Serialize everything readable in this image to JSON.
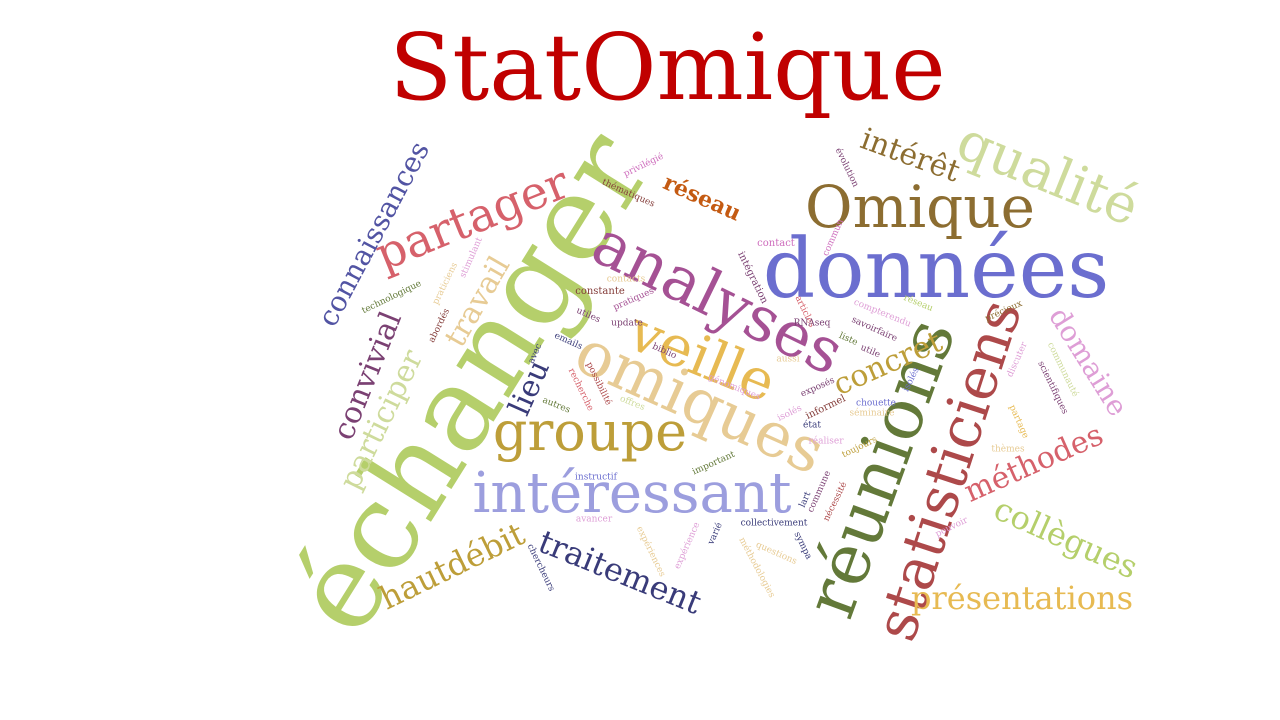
{
  "title": {
    "text": "StatOmique",
    "color": "#c00000"
  },
  "words": [
    {
      "text": "échanger",
      "color": "#b5cf6b"
    },
    {
      "text": "données",
      "color": "#6b6ecf"
    },
    {
      "text": "analyses",
      "color": "#a55194"
    },
    {
      "text": "omiques",
      "color": "#e7cb94"
    },
    {
      "text": "intéressant",
      "color": "#9c9ede"
    },
    {
      "text": "veille",
      "color": "#e7ba52"
    },
    {
      "text": "groupe",
      "color": "#bd9e39"
    },
    {
      "text": "réunions",
      "color": "#637939"
    },
    {
      "text": "statisticiens",
      "color": "#ad494a"
    },
    {
      "text": "Omique",
      "color": "#8c6d31"
    },
    {
      "text": "qualité",
      "color": "#cedb9c"
    },
    {
      "text": "partager",
      "color": "#d6616b"
    },
    {
      "text": "connaissances",
      "color": "#5254a3"
    },
    {
      "text": "traitement",
      "color": "#393b79"
    },
    {
      "text": "hautdébit",
      "color": "#bd9e39"
    },
    {
      "text": "présentations",
      "color": "#e7ba52"
    },
    {
      "text": "collègues",
      "color": "#b5cf6b"
    },
    {
      "text": "méthodes",
      "color": "#d6616b"
    },
    {
      "text": "domaine",
      "color": "#de9ed6"
    },
    {
      "text": "concret",
      "color": "#bd9e39"
    },
    {
      "text": "intérêt",
      "color": "#8c6d31"
    },
    {
      "text": "participer",
      "color": "#cedb9c"
    },
    {
      "text": "convivial",
      "color": "#7b4173"
    },
    {
      "text": "travail",
      "color": "#e7cb94"
    },
    {
      "text": "lieu",
      "color": "#393b79"
    },
    {
      "text": "réseau",
      "color": "#c45a12"
    },
    {
      "text": "privilégié",
      "color": "#ce6dbd"
    },
    {
      "text": "thématiques",
      "color": "#843c39"
    },
    {
      "text": "évolution",
      "color": "#7b4173"
    },
    {
      "text": "commun",
      "color": "#ce6dbd"
    },
    {
      "text": "contact",
      "color": "#ce6dbd"
    },
    {
      "text": "intégration",
      "color": "#7b4173"
    },
    {
      "text": "stimulant",
      "color": "#de9ed6"
    },
    {
      "text": "contacts",
      "color": "#e7cb94"
    },
    {
      "text": "pratiques",
      "color": "#a55194"
    },
    {
      "text": "constante",
      "color": "#843c39"
    },
    {
      "text": "technologique",
      "color": "#637939"
    },
    {
      "text": "praticiens",
      "color": "#e7cb94"
    },
    {
      "text": "abordés",
      "color": "#843c39"
    },
    {
      "text": "update",
      "color": "#7b4173"
    },
    {
      "text": "utiles",
      "color": "#7b4173"
    },
    {
      "text": "emails",
      "color": "#393b79"
    },
    {
      "text": "avec",
      "color": "#393b79"
    },
    {
      "text": "biblio",
      "color": "#7b4173"
    },
    {
      "text": "recherche",
      "color": "#d6616b"
    },
    {
      "text": "possibilité",
      "color": "#ad494a"
    },
    {
      "text": "autres",
      "color": "#637939"
    },
    {
      "text": "offres",
      "color": "#cedb9c"
    },
    {
      "text": "génomiques",
      "color": "#de9ed6"
    },
    {
      "text": "aussi",
      "color": "#e7cb94"
    },
    {
      "text": "articles",
      "color": "#d6616b"
    },
    {
      "text": "RNAseq",
      "color": "#7b4173"
    },
    {
      "text": "savoirfaire",
      "color": "#7b4173"
    },
    {
      "text": "liste",
      "color": "#637939"
    },
    {
      "text": "utile",
      "color": "#7b4173"
    },
    {
      "text": "compterendu",
      "color": "#de9ed6"
    },
    {
      "text": "réseau",
      "color": "#b5cf6b"
    },
    {
      "text": "précieux",
      "color": "#8c6d31"
    },
    {
      "text": "discuter",
      "color": "#de9ed6"
    },
    {
      "text": "communauté",
      "color": "#cedb9c"
    },
    {
      "text": "scientifiques",
      "color": "#7b4173"
    },
    {
      "text": "exposés",
      "color": "#7b4173"
    },
    {
      "text": "informel",
      "color": "#843c39"
    },
    {
      "text": "état",
      "color": "#393b79"
    },
    {
      "text": "isolés",
      "color": "#de9ed6"
    },
    {
      "text": "isolés",
      "color": "#6b6ecf"
    },
    {
      "text": "chouette",
      "color": "#6b6ecf"
    },
    {
      "text": "séminaire",
      "color": "#e7cb94"
    },
    {
      "text": "partage",
      "color": "#e7ba52"
    },
    {
      "text": "thèmes",
      "color": "#e7cb94"
    },
    {
      "text": "réaliser",
      "color": "#de9ed6"
    },
    {
      "text": "toujours",
      "color": "#bd9e39"
    },
    {
      "text": "instructif",
      "color": "#6b6ecf"
    },
    {
      "text": "important",
      "color": "#637939"
    },
    {
      "text": "lart",
      "color": "#393b79"
    },
    {
      "text": "commune",
      "color": "#7b4173"
    },
    {
      "text": "nécessité",
      "color": "#ad494a"
    },
    {
      "text": "avancer",
      "color": "#de9ed6"
    },
    {
      "text": "collectivement",
      "color": "#393b79"
    },
    {
      "text": "pouvoir",
      "color": "#de9ed6"
    },
    {
      "text": "sympa",
      "color": "#393b79"
    },
    {
      "text": "varié",
      "color": "#393b79"
    },
    {
      "text": "questions",
      "color": "#e7cb94"
    },
    {
      "text": "expérience",
      "color": "#de9ed6"
    },
    {
      "text": "expériences",
      "color": "#e7cb94"
    },
    {
      "text": "méthodologies",
      "color": "#e7cb94"
    },
    {
      "text": "chercheurs",
      "color": "#393b79"
    }
  ]
}
